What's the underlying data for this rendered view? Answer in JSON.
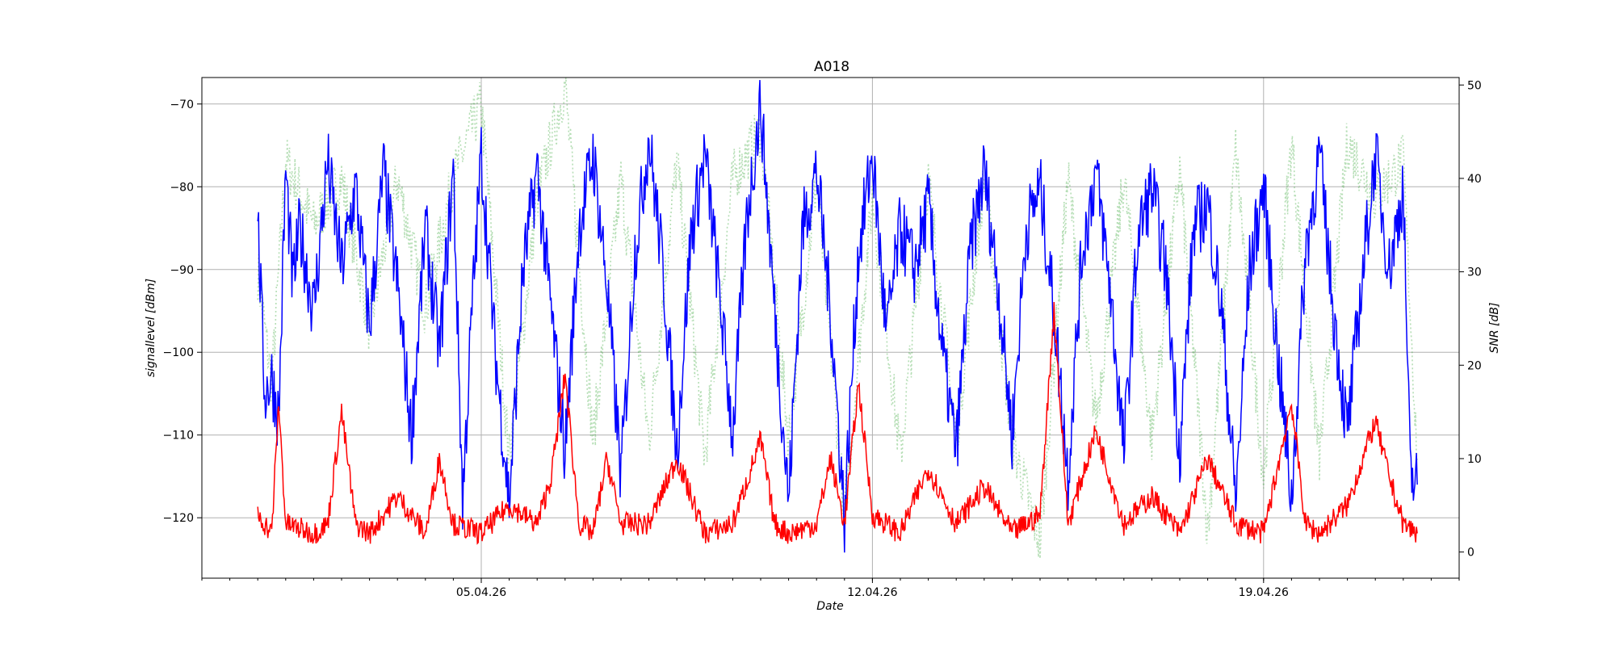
{
  "chart_data": {
    "type": "line",
    "title": "A018",
    "xlabel": "Date",
    "ylabel_left": "signallevel [dBm]",
    "ylabel_right": "SNR [dB]",
    "x_range": [
      "2026-03-31T00:00",
      "2026-04-22T12:00"
    ],
    "ylim_left": [
      -127.3,
      -66.8
    ],
    "ylim_right": [
      -2.8,
      50.8
    ],
    "grid": true,
    "x_ticks": [
      {
        "date": "2026-04-05",
        "label": "05.04.26"
      },
      {
        "date": "2026-04-12",
        "label": "12.04.26"
      },
      {
        "date": "2026-04-19",
        "label": "19.04.26"
      }
    ],
    "y_ticks_left": [
      -120,
      -110,
      -100,
      -90,
      -80,
      -70
    ],
    "y_ticks_right": [
      0,
      10,
      20,
      30,
      40,
      50
    ],
    "series": [
      {
        "color": "#0000ff",
        "axis": "left",
        "style": "solid",
        "points": [
          [
            "2026-04-01T00:00",
            -84
          ],
          [
            "2026-04-01T03:00",
            -105
          ],
          [
            "2026-04-01T06:00",
            -103
          ],
          [
            "2026-04-01T09:00",
            -108
          ],
          [
            "2026-04-01T12:00",
            -78
          ],
          [
            "2026-04-01T15:00",
            -92
          ],
          [
            "2026-04-01T18:00",
            -85
          ],
          [
            "2026-04-02T00:00",
            -95
          ],
          [
            "2026-04-02T06:00",
            -77
          ],
          [
            "2026-04-02T12:00",
            -90
          ],
          [
            "2026-04-02T18:00",
            -80
          ],
          [
            "2026-04-03T00:00",
            -97
          ],
          [
            "2026-04-03T06:00",
            -78
          ],
          [
            "2026-04-03T12:00",
            -92
          ],
          [
            "2026-04-03T18:00",
            -110
          ],
          [
            "2026-04-04T00:00",
            -85
          ],
          [
            "2026-04-04T06:00",
            -100
          ],
          [
            "2026-04-04T12:00",
            -78
          ],
          [
            "2026-04-04T16:00",
            -118
          ],
          [
            "2026-04-04T20:00",
            -95
          ],
          [
            "2026-04-05T00:00",
            -76
          ],
          [
            "2026-04-05T06:00",
            -100
          ],
          [
            "2026-04-05T12:00",
            -118
          ],
          [
            "2026-04-05T18:00",
            -90
          ],
          [
            "2026-04-06T00:00",
            -78
          ],
          [
            "2026-04-06T06:00",
            -95
          ],
          [
            "2026-04-06T12:00",
            -112
          ],
          [
            "2026-04-06T18:00",
            -85
          ],
          [
            "2026-04-07T00:00",
            -76
          ],
          [
            "2026-04-07T06:00",
            -92
          ],
          [
            "2026-04-07T12:00",
            -115
          ],
          [
            "2026-04-07T18:00",
            -88
          ],
          [
            "2026-04-08T00:00",
            -74
          ],
          [
            "2026-04-08T06:00",
            -90
          ],
          [
            "2026-04-08T12:00",
            -112
          ],
          [
            "2026-04-08T18:00",
            -86
          ],
          [
            "2026-04-09T00:00",
            -76
          ],
          [
            "2026-04-09T06:00",
            -92
          ],
          [
            "2026-04-09T12:00",
            -110
          ],
          [
            "2026-04-09T18:00",
            -84
          ],
          [
            "2026-04-10T00:00",
            -70
          ],
          [
            "2026-04-10T06:00",
            -95
          ],
          [
            "2026-04-10T12:00",
            -118
          ],
          [
            "2026-04-10T18:00",
            -85
          ],
          [
            "2026-04-11T00:00",
            -78
          ],
          [
            "2026-04-11T06:00",
            -95
          ],
          [
            "2026-04-11T12:00",
            -120
          ],
          [
            "2026-04-11T18:00",
            -88
          ],
          [
            "2026-04-12T00:00",
            -76
          ],
          [
            "2026-04-12T06:00",
            -98
          ],
          [
            "2026-04-12T12:00",
            -85
          ],
          [
            "2026-04-12T18:00",
            -90
          ],
          [
            "2026-04-13T00:00",
            -82
          ],
          [
            "2026-04-13T06:00",
            -100
          ],
          [
            "2026-04-13T12:00",
            -112
          ],
          [
            "2026-04-13T18:00",
            -88
          ],
          [
            "2026-04-14T00:00",
            -78
          ],
          [
            "2026-04-14T06:00",
            -92
          ],
          [
            "2026-04-14T12:00",
            -110
          ],
          [
            "2026-04-14T18:00",
            -85
          ],
          [
            "2026-04-15T00:00",
            -80
          ],
          [
            "2026-04-15T06:00",
            -95
          ],
          [
            "2026-04-15T12:00",
            -115
          ],
          [
            "2026-04-15T18:00",
            -88
          ],
          [
            "2026-04-16T00:00",
            -78
          ],
          [
            "2026-04-16T06:00",
            -92
          ],
          [
            "2026-04-16T12:00",
            -112
          ],
          [
            "2026-04-16T18:00",
            -86
          ],
          [
            "2026-04-17T00:00",
            -80
          ],
          [
            "2026-04-17T06:00",
            -90
          ],
          [
            "2026-04-17T12:00",
            -112
          ],
          [
            "2026-04-17T18:00",
            -85
          ],
          [
            "2026-04-18T00:00",
            -82
          ],
          [
            "2026-04-18T06:00",
            -95
          ],
          [
            "2026-04-18T12:00",
            -118
          ],
          [
            "2026-04-18T18:00",
            -90
          ],
          [
            "2026-04-19T00:00",
            -80
          ],
          [
            "2026-04-19T06:00",
            -100
          ],
          [
            "2026-04-19T12:00",
            -118
          ],
          [
            "2026-04-19T18:00",
            -88
          ],
          [
            "2026-04-20T00:00",
            -76
          ],
          [
            "2026-04-20T06:00",
            -95
          ],
          [
            "2026-04-20T12:00",
            -110
          ],
          [
            "2026-04-20T18:00",
            -92
          ],
          [
            "2026-04-21T00:00",
            -76
          ],
          [
            "2026-04-21T06:00",
            -90
          ],
          [
            "2026-04-21T12:00",
            -80
          ],
          [
            "2026-04-21T15:00",
            -115
          ],
          [
            "2026-04-21T18:00",
            -116
          ]
        ]
      },
      {
        "color": "#ff0000",
        "axis": "right",
        "style": "solid",
        "points": [
          [
            "2026-04-01T00:00",
            4
          ],
          [
            "2026-04-01T06:00",
            2
          ],
          [
            "2026-04-01T09:00",
            16
          ],
          [
            "2026-04-01T12:00",
            3
          ],
          [
            "2026-04-02T00:00",
            2
          ],
          [
            "2026-04-02T06:00",
            3
          ],
          [
            "2026-04-02T12:00",
            15
          ],
          [
            "2026-04-02T18:00",
            3
          ],
          [
            "2026-04-03T00:00",
            2
          ],
          [
            "2026-04-03T12:00",
            6
          ],
          [
            "2026-04-04T00:00",
            2
          ],
          [
            "2026-04-04T06:00",
            10
          ],
          [
            "2026-04-04T12:00",
            3
          ],
          [
            "2026-04-05T00:00",
            2
          ],
          [
            "2026-04-05T12:00",
            5
          ],
          [
            "2026-04-06T00:00",
            3
          ],
          [
            "2026-04-06T06:00",
            8
          ],
          [
            "2026-04-06T12:00",
            19
          ],
          [
            "2026-04-06T18:00",
            3
          ],
          [
            "2026-04-07T00:00",
            2
          ],
          [
            "2026-04-07T06:00",
            10
          ],
          [
            "2026-04-07T12:00",
            3
          ],
          [
            "2026-04-08T00:00",
            3
          ],
          [
            "2026-04-08T12:00",
            10
          ],
          [
            "2026-04-09T00:00",
            2
          ],
          [
            "2026-04-09T12:00",
            3
          ],
          [
            "2026-04-10T00:00",
            12
          ],
          [
            "2026-04-10T06:00",
            3
          ],
          [
            "2026-04-10T12:00",
            2
          ],
          [
            "2026-04-11T00:00",
            3
          ],
          [
            "2026-04-11T06:00",
            10
          ],
          [
            "2026-04-11T12:00",
            3
          ],
          [
            "2026-04-11T18:00",
            18
          ],
          [
            "2026-04-12T00:00",
            4
          ],
          [
            "2026-04-12T12:00",
            2
          ],
          [
            "2026-04-13T00:00",
            9
          ],
          [
            "2026-04-13T12:00",
            3
          ],
          [
            "2026-04-14T00:00",
            7
          ],
          [
            "2026-04-14T12:00",
            2
          ],
          [
            "2026-04-15T00:00",
            4
          ],
          [
            "2026-04-15T06:00",
            26
          ],
          [
            "2026-04-15T12:00",
            3
          ],
          [
            "2026-04-16T00:00",
            13
          ],
          [
            "2026-04-16T12:00",
            3
          ],
          [
            "2026-04-17T00:00",
            6
          ],
          [
            "2026-04-17T12:00",
            2
          ],
          [
            "2026-04-18T00:00",
            10
          ],
          [
            "2026-04-18T12:00",
            3
          ],
          [
            "2026-04-19T00:00",
            2
          ],
          [
            "2026-04-19T12:00",
            16
          ],
          [
            "2026-04-19T18:00",
            3
          ],
          [
            "2026-04-20T00:00",
            2
          ],
          [
            "2026-04-20T12:00",
            5
          ],
          [
            "2026-04-21T00:00",
            14
          ],
          [
            "2026-04-21T06:00",
            8
          ],
          [
            "2026-04-21T12:00",
            3
          ],
          [
            "2026-04-21T18:00",
            2
          ]
        ]
      },
      {
        "color": "#2ca02c",
        "axis": "right",
        "style": "dotted",
        "opacity": 0.35,
        "points": [
          [
            "2026-04-01T00:00",
            30
          ],
          [
            "2026-04-01T06:00",
            18
          ],
          [
            "2026-04-01T12:00",
            42
          ],
          [
            "2026-04-02T00:00",
            35
          ],
          [
            "2026-04-02T12:00",
            40
          ],
          [
            "2026-04-03T00:00",
            24
          ],
          [
            "2026-04-03T12:00",
            40
          ],
          [
            "2026-04-04T00:00",
            26
          ],
          [
            "2026-04-04T12:00",
            40
          ],
          [
            "2026-04-05T00:00",
            48
          ],
          [
            "2026-04-05T12:00",
            10
          ],
          [
            "2026-04-06T00:00",
            38
          ],
          [
            "2026-04-06T12:00",
            50
          ],
          [
            "2026-04-07T00:00",
            12
          ],
          [
            "2026-04-07T12:00",
            40
          ],
          [
            "2026-04-08T00:00",
            12
          ],
          [
            "2026-04-08T12:00",
            42
          ],
          [
            "2026-04-09T00:00",
            10
          ],
          [
            "2026-04-09T12:00",
            40
          ],
          [
            "2026-04-10T00:00",
            45
          ],
          [
            "2026-04-10T12:00",
            12
          ],
          [
            "2026-04-11T00:00",
            40
          ],
          [
            "2026-04-11T12:00",
            4
          ],
          [
            "2026-04-12T00:00",
            38
          ],
          [
            "2026-04-12T12:00",
            10
          ],
          [
            "2026-04-13T00:00",
            40
          ],
          [
            "2026-04-13T12:00",
            12
          ],
          [
            "2026-04-14T00:00",
            40
          ],
          [
            "2026-04-14T12:00",
            12
          ],
          [
            "2026-04-15T00:00",
            1
          ],
          [
            "2026-04-15T12:00",
            40
          ],
          [
            "2026-04-16T00:00",
            14
          ],
          [
            "2026-04-16T12:00",
            40
          ],
          [
            "2026-04-17T00:00",
            12
          ],
          [
            "2026-04-17T12:00",
            41
          ],
          [
            "2026-04-18T00:00",
            2
          ],
          [
            "2026-04-18T12:00",
            43
          ],
          [
            "2026-04-19T00:00",
            8
          ],
          [
            "2026-04-19T12:00",
            44
          ],
          [
            "2026-04-20T00:00",
            10
          ],
          [
            "2026-04-20T12:00",
            44
          ],
          [
            "2026-04-21T00:00",
            38
          ],
          [
            "2026-04-21T12:00",
            42
          ],
          [
            "2026-04-21T18:00",
            10
          ]
        ]
      }
    ]
  }
}
